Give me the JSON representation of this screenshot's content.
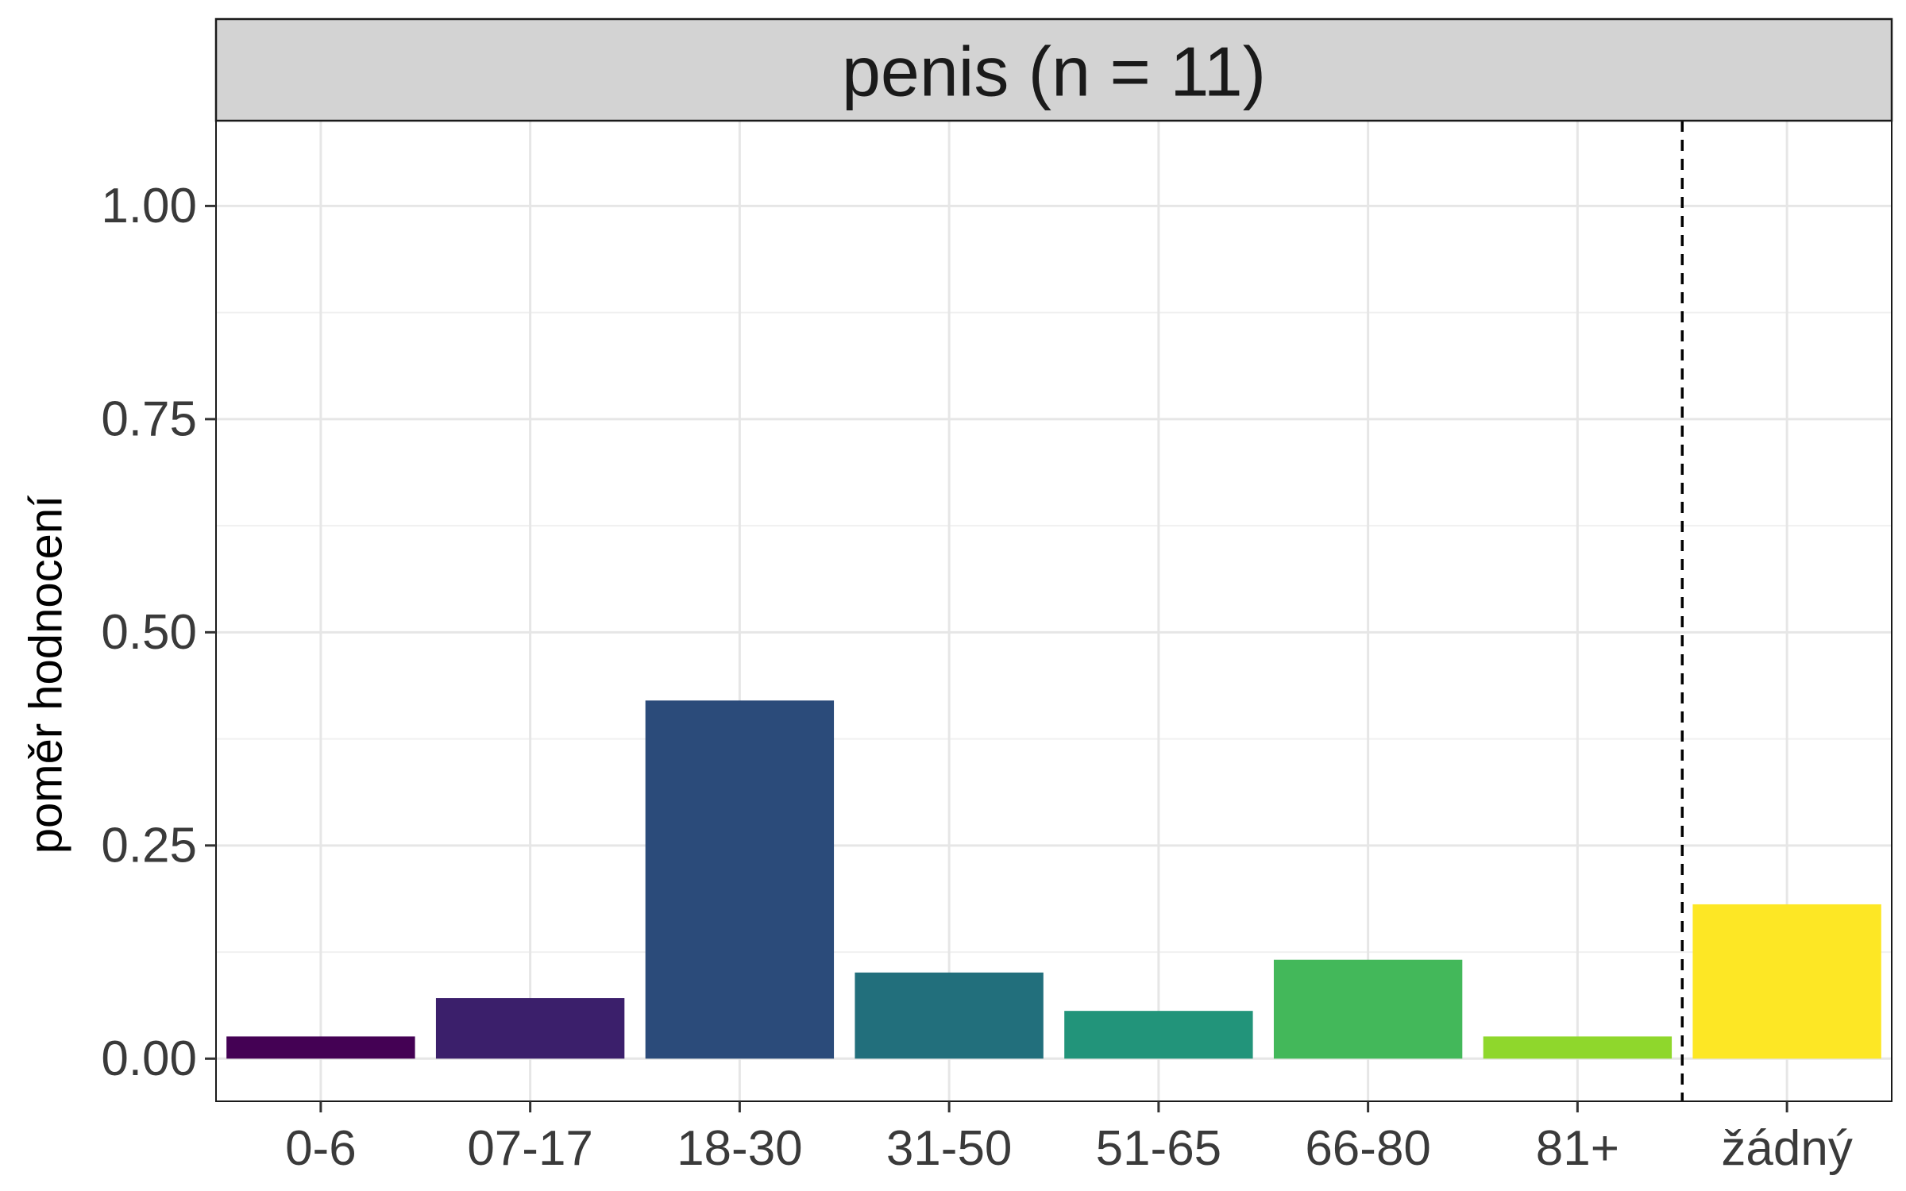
{
  "chart_data": {
    "type": "bar",
    "facet_title": "penis (n = 11)",
    "ylabel": "poměr hodnocení",
    "xlabel": "",
    "categories": [
      "0-6",
      "07-17",
      "18-30",
      "31-50",
      "51-65",
      "66-80",
      "81+",
      "žádný"
    ],
    "values": [
      0.026,
      0.071,
      0.42,
      0.101,
      0.056,
      0.116,
      0.026,
      0.181
    ],
    "colors": [
      "#440154",
      "#3b1f6b",
      "#2b4b7a",
      "#226f7c",
      "#22947a",
      "#43b85a",
      "#8fd72c",
      "#fde725"
    ],
    "ylim": [
      -0.05,
      1.1
    ],
    "yticks": [
      0.0,
      0.25,
      0.5,
      0.75,
      1.0
    ],
    "ytick_labels": [
      "0.00",
      "0.25",
      "0.50",
      "0.75",
      "1.00"
    ],
    "separator_after_category": "81+",
    "separator_style": "dashed",
    "grid": true,
    "legend": "none"
  }
}
